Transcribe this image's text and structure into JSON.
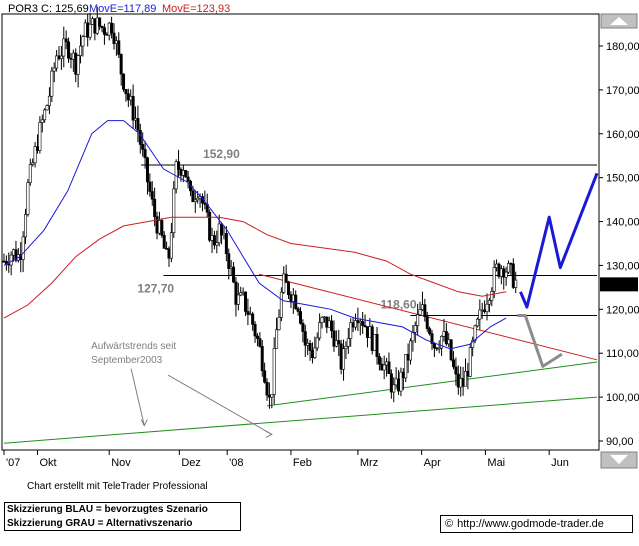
{
  "legend": {
    "symbol_label": "POR3 C: 125,69",
    "ma1_label": "MovE=117,89",
    "ma2_label": "MovE=123,93",
    "symbol_color": "#000000",
    "ma1_color": "#1a1ad6",
    "ma2_color": "#cc1f1f"
  },
  "credit": "Chart erstellt mit TeleTrader Professional",
  "scenario": {
    "blue": "Skizzierung BLAU = bevorzugtes Szenario",
    "grey": "Skizzierung GRAU = Alternativszenario"
  },
  "url": {
    "icon": "copyright-icon",
    "text": "http://www.godmode-trader.de"
  },
  "chart_data": {
    "type": "candlestick",
    "title": "POR3",
    "last_close": "125,69",
    "last_close_value": 125.69,
    "ylim": [
      88,
      190
    ],
    "y_ticks": [
      {
        "value": 90,
        "label": "90,00"
      },
      {
        "value": 100,
        "label": "100,00"
      },
      {
        "value": 110,
        "label": "110,00"
      },
      {
        "value": 120,
        "label": "120,00"
      },
      {
        "value": 130,
        "label": "130,00"
      },
      {
        "value": 140,
        "label": "140,00"
      },
      {
        "value": 150,
        "label": "150,00"
      },
      {
        "value": 160,
        "label": "160,00"
      },
      {
        "value": 170,
        "label": "170,00"
      },
      {
        "value": 180,
        "label": "180,00"
      }
    ],
    "x_ticks": [
      {
        "t": 0,
        "label": "'07"
      },
      {
        "t": 21,
        "label": "Okt"
      },
      {
        "t": 66,
        "label": "Nov"
      },
      {
        "t": 110,
        "label": "Dez"
      },
      {
        "t": 140,
        "label": "'08"
      },
      {
        "t": 180,
        "label": "Feb"
      },
      {
        "t": 222,
        "label": "Mrz"
      },
      {
        "t": 262,
        "label": "Apr"
      },
      {
        "t": 302,
        "label": "Mai"
      },
      {
        "t": 342,
        "label": "Jun"
      }
    ],
    "x_range": [
      0,
      372
    ],
    "price_path": [
      [
        0,
        131
      ],
      [
        5,
        133
      ],
      [
        10,
        132
      ],
      [
        15,
        148
      ],
      [
        22,
        160
      ],
      [
        28,
        168
      ],
      [
        33,
        178
      ],
      [
        40,
        180
      ],
      [
        45,
        176
      ],
      [
        50,
        183
      ],
      [
        57,
        185
      ],
      [
        63,
        184
      ],
      [
        68,
        185
      ],
      [
        73,
        175
      ],
      [
        78,
        168
      ],
      [
        83,
        163
      ],
      [
        88,
        153
      ],
      [
        94,
        142
      ],
      [
        99,
        136
      ],
      [
        103,
        130
      ],
      [
        108,
        152
      ],
      [
        113,
        153
      ],
      [
        117,
        145
      ],
      [
        122,
        148
      ],
      [
        126,
        142
      ],
      [
        131,
        135
      ],
      [
        135,
        138
      ],
      [
        140,
        133
      ],
      [
        146,
        122
      ],
      [
        150,
        122
      ],
      [
        155,
        118
      ],
      [
        159,
        113
      ],
      [
        163,
        107
      ],
      [
        167,
        98
      ],
      [
        171,
        115
      ],
      [
        175,
        126
      ],
      [
        180,
        124
      ],
      [
        185,
        121
      ],
      [
        189,
        112
      ],
      [
        194,
        110
      ],
      [
        199,
        117
      ],
      [
        203,
        117
      ],
      [
        207,
        114
      ],
      [
        212,
        107
      ],
      [
        216,
        115
      ],
      [
        221,
        120
      ],
      [
        226,
        117
      ],
      [
        231,
        113
      ],
      [
        236,
        109
      ],
      [
        241,
        105
      ],
      [
        245,
        101
      ],
      [
        250,
        105
      ],
      [
        254,
        110
      ],
      [
        258,
        116
      ],
      [
        262,
        120
      ],
      [
        266,
        117
      ],
      [
        270,
        112
      ],
      [
        275,
        114
      ],
      [
        279,
        111
      ],
      [
        284,
        103
      ],
      [
        288,
        103
      ],
      [
        292,
        108
      ],
      [
        296,
        115
      ],
      [
        300,
        120
      ],
      [
        305,
        125
      ],
      [
        309,
        129
      ],
      [
        313,
        130
      ],
      [
        318,
        128
      ],
      [
        322,
        125.69
      ]
    ],
    "series": [
      {
        "name": "MovE=117,89",
        "color": "#1a1ad6",
        "points": [
          [
            0,
            130
          ],
          [
            10,
            132
          ],
          [
            25,
            138
          ],
          [
            40,
            147
          ],
          [
            55,
            160
          ],
          [
            65,
            163
          ],
          [
            75,
            163
          ],
          [
            85,
            160
          ],
          [
            100,
            152
          ],
          [
            115,
            149
          ],
          [
            125,
            145
          ],
          [
            140,
            138
          ],
          [
            150,
            132
          ],
          [
            160,
            126
          ],
          [
            175,
            122
          ],
          [
            190,
            121
          ],
          [
            205,
            120
          ],
          [
            220,
            118
          ],
          [
            235,
            117
          ],
          [
            250,
            116
          ],
          [
            265,
            113
          ],
          [
            280,
            111
          ],
          [
            292,
            112
          ],
          [
            305,
            116
          ],
          [
            315,
            118
          ]
        ]
      },
      {
        "name": "MovE=123,93",
        "color": "#cc1f1f",
        "points": [
          [
            0,
            118
          ],
          [
            15,
            121
          ],
          [
            30,
            126
          ],
          [
            45,
            132
          ],
          [
            60,
            136
          ],
          [
            75,
            139
          ],
          [
            90,
            140
          ],
          [
            105,
            141
          ],
          [
            120,
            141
          ],
          [
            135,
            141
          ],
          [
            150,
            140
          ],
          [
            165,
            137
          ],
          [
            180,
            135
          ],
          [
            200,
            134
          ],
          [
            220,
            133
          ],
          [
            240,
            131
          ],
          [
            255,
            128
          ],
          [
            270,
            126
          ],
          [
            285,
            124
          ],
          [
            300,
            123
          ],
          [
            315,
            124
          ]
        ]
      }
    ],
    "horizontal_levels": [
      {
        "value": 152.9,
        "label": "152,90",
        "t_start": 86,
        "t_end": 372
      },
      {
        "value": 127.7,
        "label": "127,70",
        "t_start": 100,
        "t_end": 372
      },
      {
        "value": 118.6,
        "label": "118,60",
        "t_start": 255,
        "t_end": 372
      }
    ],
    "trendlines": [
      {
        "kind": "resistance",
        "color": "#cc1f1f",
        "points": [
          [
            160,
            128
          ],
          [
            372,
            108.5
          ]
        ]
      },
      {
        "kind": "support-upper",
        "color": "#1d8f1d",
        "points": [
          [
            165,
            98
          ],
          [
            372,
            108
          ]
        ]
      },
      {
        "kind": "support-lower",
        "color": "#1d8f1d",
        "points": [
          [
            0,
            89.5
          ],
          [
            372,
            100
          ]
        ]
      }
    ],
    "scenario_paths": [
      {
        "name": "BLAU",
        "color": "#1a1ad6",
        "points": [
          [
            324,
            124
          ],
          [
            328,
            120.5
          ],
          [
            342,
            141
          ],
          [
            349,
            129.5
          ],
          [
            372,
            151
          ]
        ]
      },
      {
        "name": "GRAU",
        "color": "#8c8c8c",
        "points": [
          [
            322,
            118.6
          ],
          [
            327,
            118.6
          ],
          [
            338,
            107
          ],
          [
            350,
            109.8
          ]
        ]
      }
    ],
    "annotations": [
      {
        "text": "Aufwärtstrends seit",
        "t": 86,
        "value": 111
      },
      {
        "text": "September2003",
        "t": 86,
        "value": 107.8
      }
    ],
    "grid": false,
    "legend_position": "top-left"
  }
}
